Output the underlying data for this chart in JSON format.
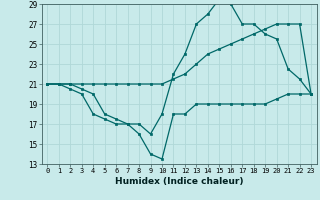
{
  "xlabel": "Humidex (Indice chaleur)",
  "bg_color": "#c8eaea",
  "grid_color": "#b0d8d8",
  "line_color": "#006868",
  "xlim": [
    -0.5,
    23.5
  ],
  "ylim": [
    13,
    29
  ],
  "yticks": [
    13,
    15,
    17,
    19,
    21,
    23,
    25,
    27,
    29
  ],
  "xticks": [
    0,
    1,
    2,
    3,
    4,
    5,
    6,
    7,
    8,
    9,
    10,
    11,
    12,
    13,
    14,
    15,
    16,
    17,
    18,
    19,
    20,
    21,
    22,
    23
  ],
  "line1_x": [
    0,
    1,
    2,
    3,
    4,
    5,
    6,
    7,
    8,
    9,
    10,
    11,
    12,
    13,
    14,
    15,
    16,
    17,
    18,
    19,
    20,
    21,
    22,
    23
  ],
  "line1_y": [
    21,
    21,
    20.5,
    20,
    18,
    17.5,
    17,
    17,
    16,
    14,
    13.5,
    18,
    18,
    19,
    19,
    19,
    19,
    19,
    19,
    19,
    19.5,
    20,
    20,
    20
  ],
  "line2_x": [
    0,
    1,
    2,
    3,
    4,
    5,
    6,
    7,
    8,
    9,
    10,
    11,
    12,
    13,
    14,
    15,
    16,
    17,
    18,
    19,
    20,
    21,
    22,
    23
  ],
  "line2_y": [
    21,
    21,
    21,
    21,
    21,
    21,
    21,
    21,
    21,
    21,
    21,
    21.5,
    22,
    23,
    24,
    24.5,
    25,
    25.5,
    26,
    26.5,
    27,
    27,
    27,
    20
  ],
  "line3_x": [
    0,
    2,
    3,
    4,
    5,
    6,
    7,
    8,
    9,
    10,
    11,
    12,
    13,
    14,
    15,
    16,
    17,
    18,
    19,
    20,
    21,
    22,
    23
  ],
  "line3_y": [
    21,
    21,
    20.5,
    20,
    18,
    17.5,
    17,
    17,
    16,
    18,
    22,
    24,
    27,
    28,
    29.5,
    29,
    27,
    27,
    26,
    25.5,
    22.5,
    21.5,
    20
  ]
}
